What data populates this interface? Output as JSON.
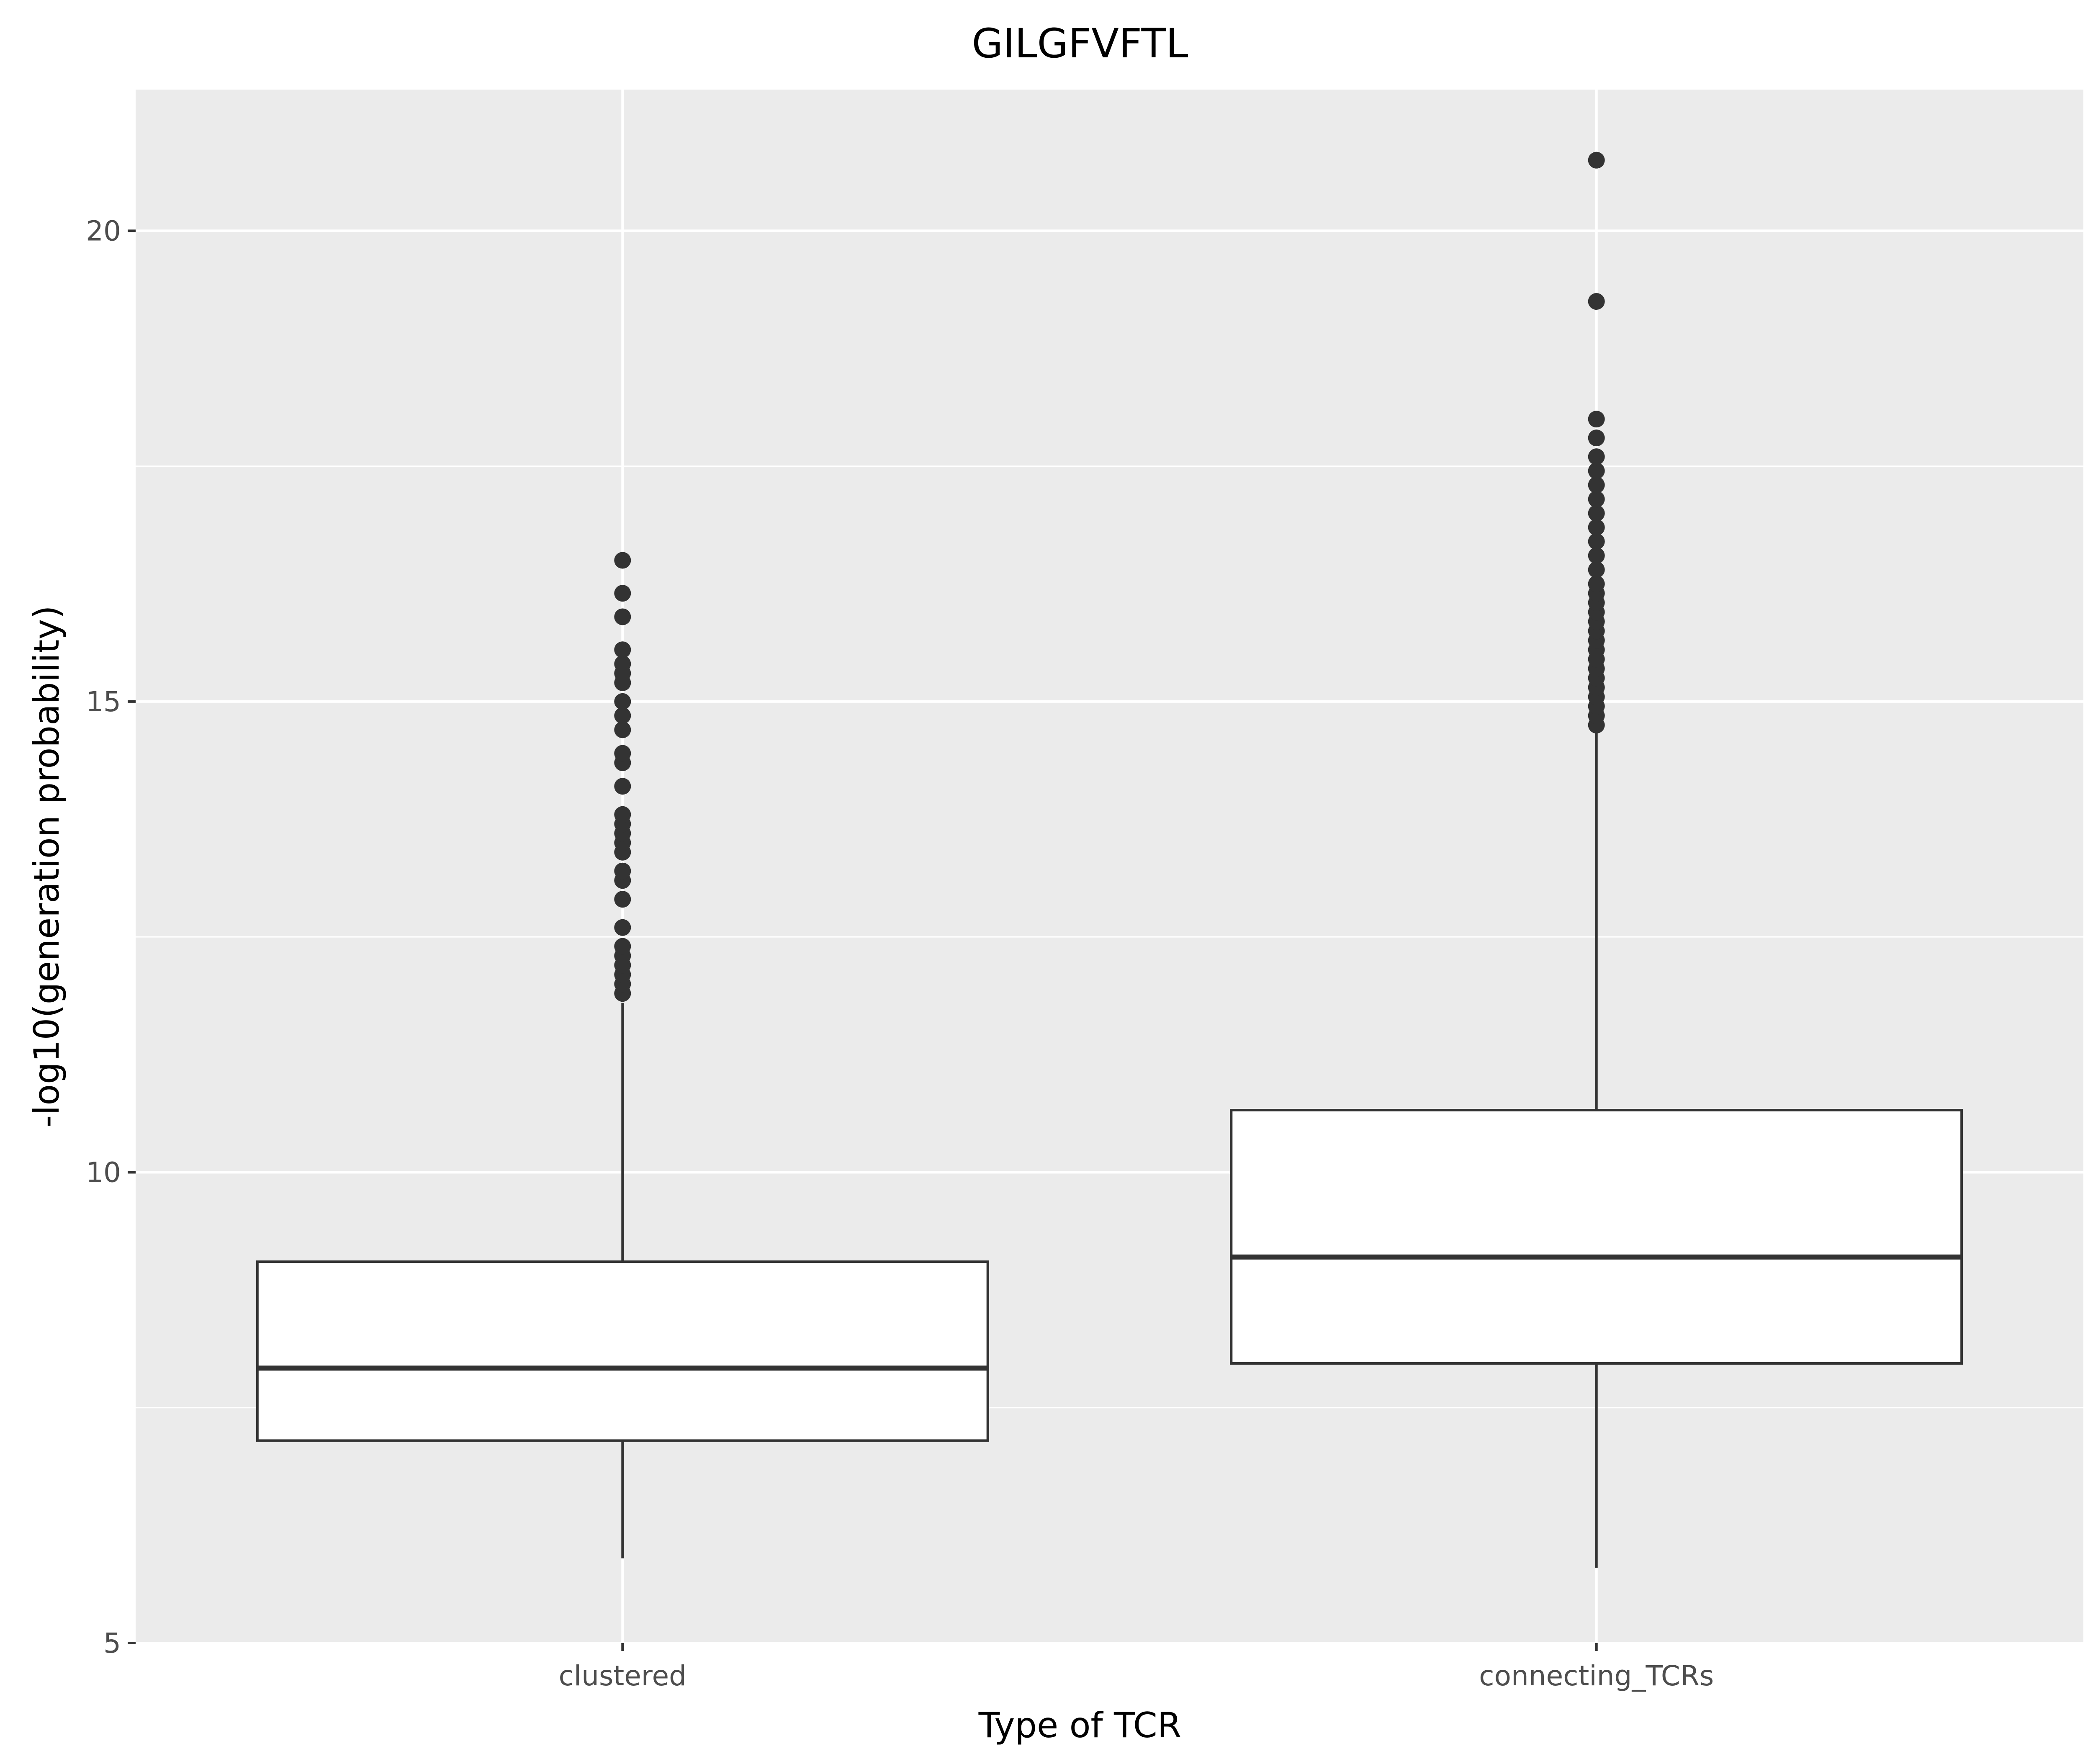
{
  "chart_data": {
    "type": "box",
    "title": "GILGFVFTL",
    "xlabel": "Type of TCR",
    "ylabel": "-log10(generation probability)",
    "categories": [
      "clustered",
      "connecting_TCRs"
    ],
    "ylim": [
      5,
      21.5
    ],
    "yticks": [
      5,
      10,
      15,
      20
    ],
    "grid": true,
    "legend": "none",
    "boxes": [
      {
        "category": "clustered",
        "whisker_low": 5.9,
        "q1": 7.15,
        "median": 7.92,
        "q3": 9.05,
        "whisker_high": 11.8,
        "outliers": [
          11.9,
          12.0,
          12.1,
          12.2,
          12.3,
          12.4,
          12.6,
          12.9,
          13.1,
          13.2,
          13.4,
          13.5,
          13.6,
          13.7,
          13.8,
          14.1,
          14.35,
          14.45,
          14.7,
          14.85,
          15.0,
          15.2,
          15.3,
          15.4,
          15.55,
          15.9,
          16.15,
          16.5
        ]
      },
      {
        "category": "connecting_TCRs",
        "whisker_low": 5.8,
        "q1": 7.97,
        "median": 9.1,
        "q3": 10.66,
        "whisker_high": 14.7,
        "outliers": [
          14.75,
          14.85,
          14.95,
          15.05,
          15.15,
          15.25,
          15.35,
          15.45,
          15.55,
          15.65,
          15.75,
          15.85,
          15.95,
          16.05,
          16.15,
          16.25,
          16.4,
          16.55,
          16.7,
          16.85,
          17.0,
          17.15,
          17.3,
          17.45,
          17.6,
          17.8,
          18.0,
          19.25,
          20.75
        ]
      }
    ],
    "colors": {
      "panel_background": "#ebebeb",
      "grid": "#ffffff",
      "box_fill": "#ffffff",
      "box_line": "#333333",
      "outlier": "#333333",
      "tick": "#333333",
      "tick_label": "#4d4d4d",
      "text": "#000000"
    }
  }
}
